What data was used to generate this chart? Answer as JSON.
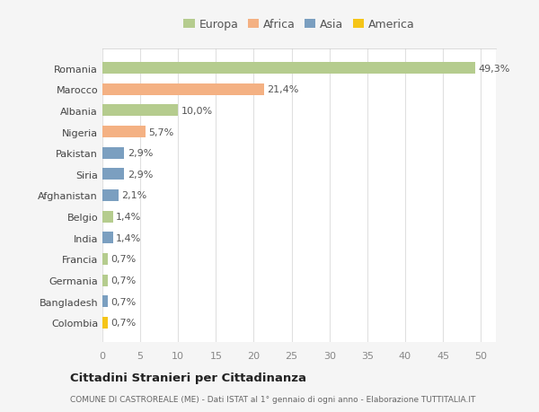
{
  "categories": [
    "Romania",
    "Marocco",
    "Albania",
    "Nigeria",
    "Pakistan",
    "Siria",
    "Afghanistan",
    "Belgio",
    "India",
    "Francia",
    "Germania",
    "Bangladesh",
    "Colombia"
  ],
  "values": [
    49.3,
    21.4,
    10.0,
    5.7,
    2.9,
    2.9,
    2.1,
    1.4,
    1.4,
    0.7,
    0.7,
    0.7,
    0.7
  ],
  "labels": [
    "49,3%",
    "21,4%",
    "10,0%",
    "5,7%",
    "2,9%",
    "2,9%",
    "2,1%",
    "1,4%",
    "1,4%",
    "0,7%",
    "0,7%",
    "0,7%",
    "0,7%"
  ],
  "colors": [
    "#b5cc8e",
    "#f4b183",
    "#b5cc8e",
    "#f4b183",
    "#7b9fc0",
    "#7b9fc0",
    "#7b9fc0",
    "#b5cc8e",
    "#7b9fc0",
    "#b5cc8e",
    "#b5cc8e",
    "#7b9fc0",
    "#f5c518"
  ],
  "legend": {
    "Europa": "#b5cc8e",
    "Africa": "#f4b183",
    "Asia": "#7b9fc0",
    "America": "#f5c518"
  },
  "xlim": [
    0,
    52
  ],
  "xticks": [
    0,
    5,
    10,
    15,
    20,
    25,
    30,
    35,
    40,
    45,
    50
  ],
  "title": "Cittadini Stranieri per Cittadinanza",
  "subtitle": "COMUNE DI CASTROREALE (ME) - Dati ISTAT al 1° gennaio di ogni anno - Elaborazione TUTTITALIA.IT",
  "plot_bg_color": "#ffffff",
  "fig_bg_color": "#f5f5f5",
  "grid_color": "#e0e0e0",
  "label_fontsize": 8,
  "tick_fontsize": 8,
  "bar_height": 0.55
}
